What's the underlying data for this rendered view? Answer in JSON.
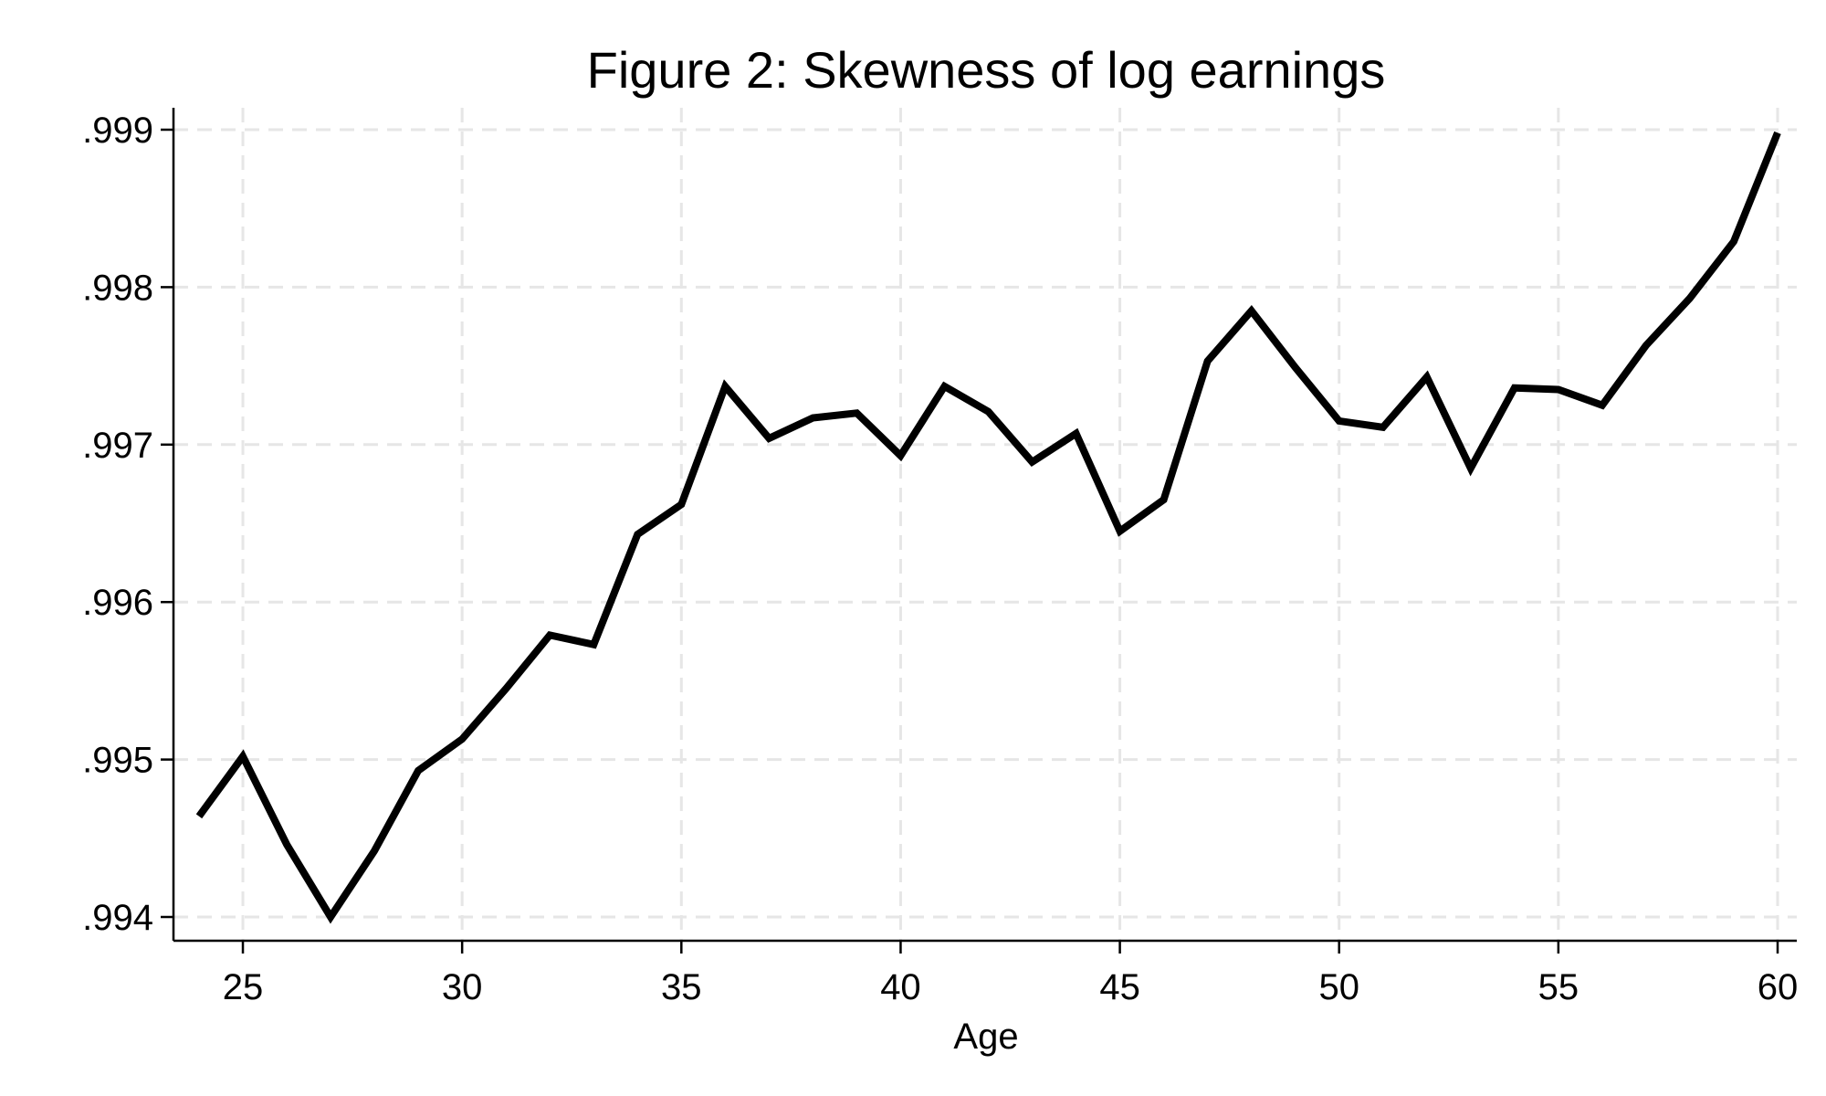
{
  "chart_data": {
    "type": "line",
    "title": "Figure 2: Skewness of log earnings",
    "xlabel": "Age",
    "ylabel": "",
    "xlim": [
      24,
      60
    ],
    "ylim": [
      0.994,
      0.999
    ],
    "xticks": [
      25,
      30,
      35,
      40,
      45,
      50,
      55,
      60
    ],
    "xtick_labels": [
      "25",
      "30",
      "35",
      "40",
      "45",
      "50",
      "55",
      "60"
    ],
    "yticks": [
      0.994,
      0.995,
      0.996,
      0.997,
      0.998,
      0.999
    ],
    "ytick_labels": [
      ".994",
      ".995",
      ".996",
      ".997",
      ".998",
      ".999"
    ],
    "grid": true,
    "legend": "none",
    "series": [
      {
        "color": "#000000",
        "x": [
          24,
          25,
          26,
          27,
          28,
          29,
          30,
          31,
          32,
          33,
          34,
          35,
          36,
          37,
          38,
          39,
          40,
          41,
          42,
          43,
          44,
          45,
          46,
          47,
          48,
          49,
          50,
          51,
          52,
          53,
          54,
          55,
          56,
          57,
          58,
          59,
          60
        ],
        "y": [
          0.99464,
          0.99502,
          0.99446,
          0.994,
          0.99442,
          0.99493,
          0.99513,
          0.99545,
          0.99579,
          0.99573,
          0.99643,
          0.99662,
          0.99737,
          0.99704,
          0.99717,
          0.9972,
          0.99693,
          0.99737,
          0.99721,
          0.99689,
          0.99707,
          0.99645,
          0.99665,
          0.99753,
          0.99785,
          0.99749,
          0.99715,
          0.99711,
          0.99743,
          0.99685,
          0.99736,
          0.99735,
          0.99725,
          0.99763,
          0.99793,
          0.99829,
          0.99898
        ]
      }
    ]
  }
}
